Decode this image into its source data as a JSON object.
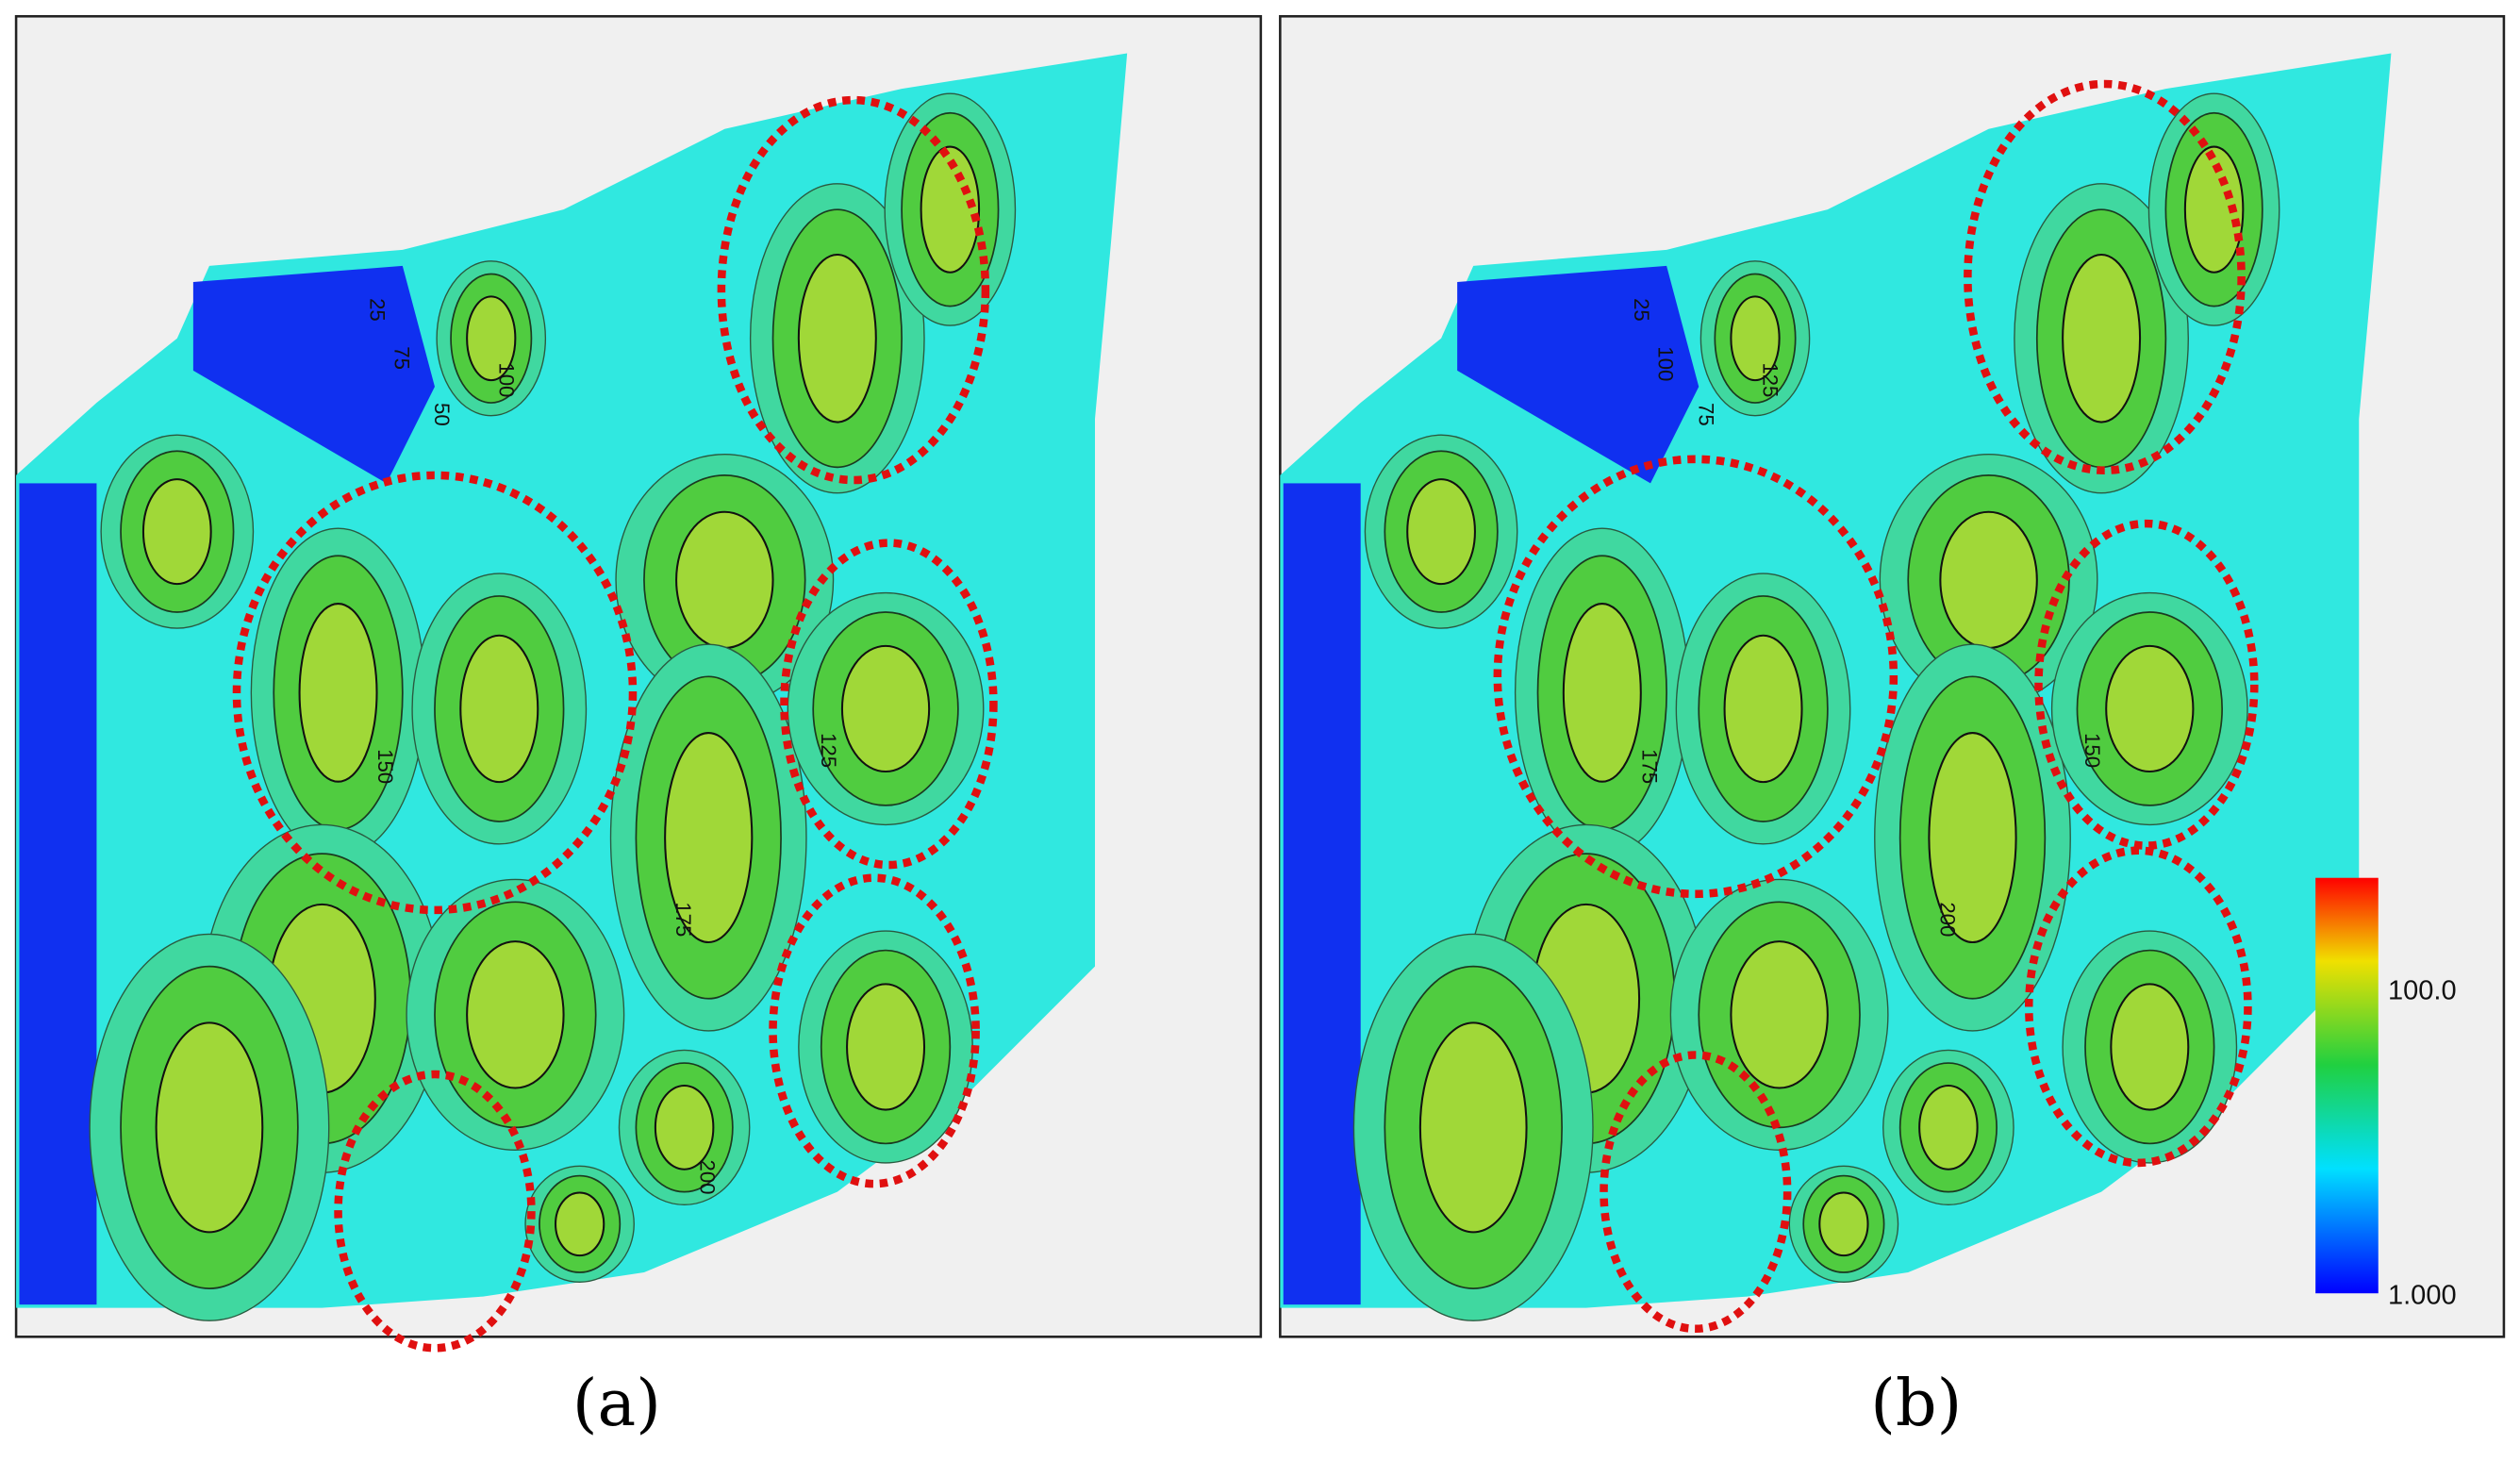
{
  "panels": [
    {
      "label": "(a)",
      "contour_labels": [
        "25",
        "50",
        "75",
        "100",
        "125",
        "150",
        "175",
        "200"
      ]
    },
    {
      "label": "(b)",
      "contour_labels": [
        "25",
        "75",
        "100",
        "125",
        "150",
        "175",
        "200"
      ]
    }
  ],
  "colorbar": {
    "labels": [
      "100.0",
      "1.000"
    ]
  }
}
